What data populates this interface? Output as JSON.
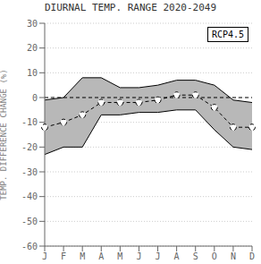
{
  "chart_data": {
    "type": "line",
    "title": "DIURNAL TEMP. RANGE 2020-2049",
    "ylabel": "TEMP. DIFFERENCE CHANGE (%)",
    "categories": [
      "J",
      "F",
      "M",
      "A",
      "M",
      "J",
      "J",
      "A",
      "S",
      "O",
      "N",
      "D"
    ],
    "series": [
      {
        "type": "band",
        "color": "#b8b8b8",
        "lower": [
          -23,
          -20,
          -20,
          -7,
          -7,
          -6,
          -6,
          -5,
          -5,
          -13,
          -20,
          -21
        ],
        "upper": [
          -1,
          0,
          8,
          8,
          4,
          4,
          5,
          7,
          7,
          5,
          -1,
          -2
        ]
      },
      {
        "type": "line",
        "color": "#000000",
        "line_style": "dashed",
        "marker": "circle",
        "values": [
          -12,
          -10,
          -7,
          -2,
          -2,
          -2,
          -1,
          1,
          1,
          -4,
          -12,
          -12
        ]
      }
    ],
    "hlines": [
      {
        "y": 0,
        "line_style": "dashed"
      }
    ],
    "ylim": [
      -60,
      30
    ],
    "yticks": [
      30,
      20,
      10,
      0,
      -10,
      -20,
      -30,
      -40,
      -50,
      -60
    ],
    "grid": true,
    "annotations": [
      "RCP4.5"
    ]
  }
}
